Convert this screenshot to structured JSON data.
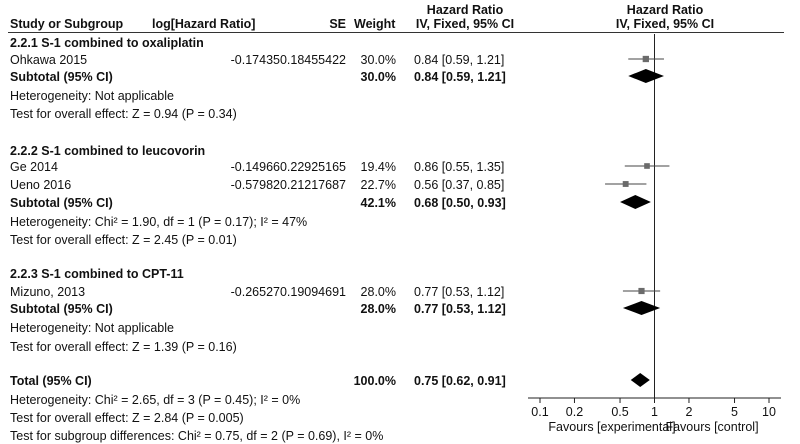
{
  "header": {
    "study": "Study or Subgroup",
    "loghr": "log[Hazard Ratio]",
    "se": "SE",
    "weight": "Weight",
    "hr_top": "Hazard Ratio",
    "hr_sub": "IV, Fixed, 95% CI",
    "plot_top": "Hazard Ratio",
    "plot_sub": "IV, Fixed, 95% CI"
  },
  "groups": [
    {
      "title": "2.2.1 S-1 combined to oxaliplatin",
      "studies": [
        {
          "name": "Ohkawa 2015",
          "loghr": "-0.17435",
          "se": "0.18455422",
          "weight": "30.0%",
          "ci": "0.84 [0.59, 1.21]"
        }
      ],
      "subtotal_label": "Subtotal (95% CI)",
      "subtotal_weight": "30.0%",
      "subtotal_ci": "0.84 [0.59, 1.21]",
      "heterogeneity": "Heterogeneity: Not applicable",
      "overall": "Test for overall effect: Z = 0.94 (P = 0.34)"
    },
    {
      "title": "2.2.2 S-1 combined to leucovorin",
      "studies": [
        {
          "name": "Ge 2014",
          "loghr": "-0.14966",
          "se": "0.22925165",
          "weight": "19.4%",
          "ci": "0.86 [0.55, 1.35]"
        },
        {
          "name": "Ueno 2016",
          "loghr": "-0.57982",
          "se": "0.21217687",
          "weight": "22.7%",
          "ci": "0.56 [0.37, 0.85]"
        }
      ],
      "subtotal_label": "Subtotal (95% CI)",
      "subtotal_weight": "42.1%",
      "subtotal_ci": "0.68 [0.50, 0.93]",
      "heterogeneity": "Heterogeneity: Chi² = 1.90, df = 1 (P = 0.17); I² = 47%",
      "overall": "Test for overall effect: Z = 2.45 (P = 0.01)"
    },
    {
      "title": "2.2.3 S-1 combined to CPT-11",
      "studies": [
        {
          "name": "Mizuno, 2013",
          "loghr": "-0.26527",
          "se": "0.19094691",
          "weight": "28.0%",
          "ci": "0.77 [0.53, 1.12]"
        }
      ],
      "subtotal_label": "Subtotal (95% CI)",
      "subtotal_weight": "28.0%",
      "subtotal_ci": "0.77 [0.53, 1.12]",
      "heterogeneity": "Heterogeneity: Not applicable",
      "overall": "Test for overall effect: Z = 1.39 (P = 0.16)"
    }
  ],
  "total": {
    "label": "Total (95% CI)",
    "weight": "100.0%",
    "ci": "0.75 [0.62, 0.91]",
    "heterogeneity": "Heterogeneity: Chi² = 2.65, df = 3 (P = 0.45); I² = 0%",
    "overall": "Test for overall effect: Z = 2.84 (P = 0.005)",
    "subgroup": "Test for subgroup differences: Chi² = 0.75, df = 2 (P = 0.69), I² = 0%"
  },
  "chart_data": {
    "type": "scatter",
    "scale": "log",
    "xlim": [
      0.1,
      10
    ],
    "x_ticks": [
      0.1,
      0.2,
      0.5,
      1,
      2,
      5,
      10
    ],
    "x_tick_labels": [
      "0.1",
      "0.2",
      "0.5",
      "1",
      "2",
      "5",
      "10"
    ],
    "favours_left": "Favours [experimental]",
    "favours_right": "Favours [control]",
    "points": [
      {
        "label": "Ohkawa 2015",
        "kind": "study",
        "hr": 0.84,
        "lo": 0.59,
        "hi": 1.21,
        "weight": 30.0
      },
      {
        "label": "Subtotal 2.2.1",
        "kind": "diamond",
        "hr": 0.84,
        "lo": 0.59,
        "hi": 1.21
      },
      {
        "label": "Ge 2014",
        "kind": "study",
        "hr": 0.86,
        "lo": 0.55,
        "hi": 1.35,
        "weight": 19.4
      },
      {
        "label": "Ueno 2016",
        "kind": "study",
        "hr": 0.56,
        "lo": 0.37,
        "hi": 0.85,
        "weight": 22.7
      },
      {
        "label": "Subtotal 2.2.2",
        "kind": "diamond",
        "hr": 0.68,
        "lo": 0.5,
        "hi": 0.93
      },
      {
        "label": "Mizuno, 2013",
        "kind": "study",
        "hr": 0.77,
        "lo": 0.53,
        "hi": 1.12,
        "weight": 28.0
      },
      {
        "label": "Subtotal 2.2.3",
        "kind": "diamond",
        "hr": 0.77,
        "lo": 0.53,
        "hi": 1.12
      },
      {
        "label": "Total",
        "kind": "diamond",
        "hr": 0.75,
        "lo": 0.62,
        "hi": 0.91
      }
    ]
  }
}
